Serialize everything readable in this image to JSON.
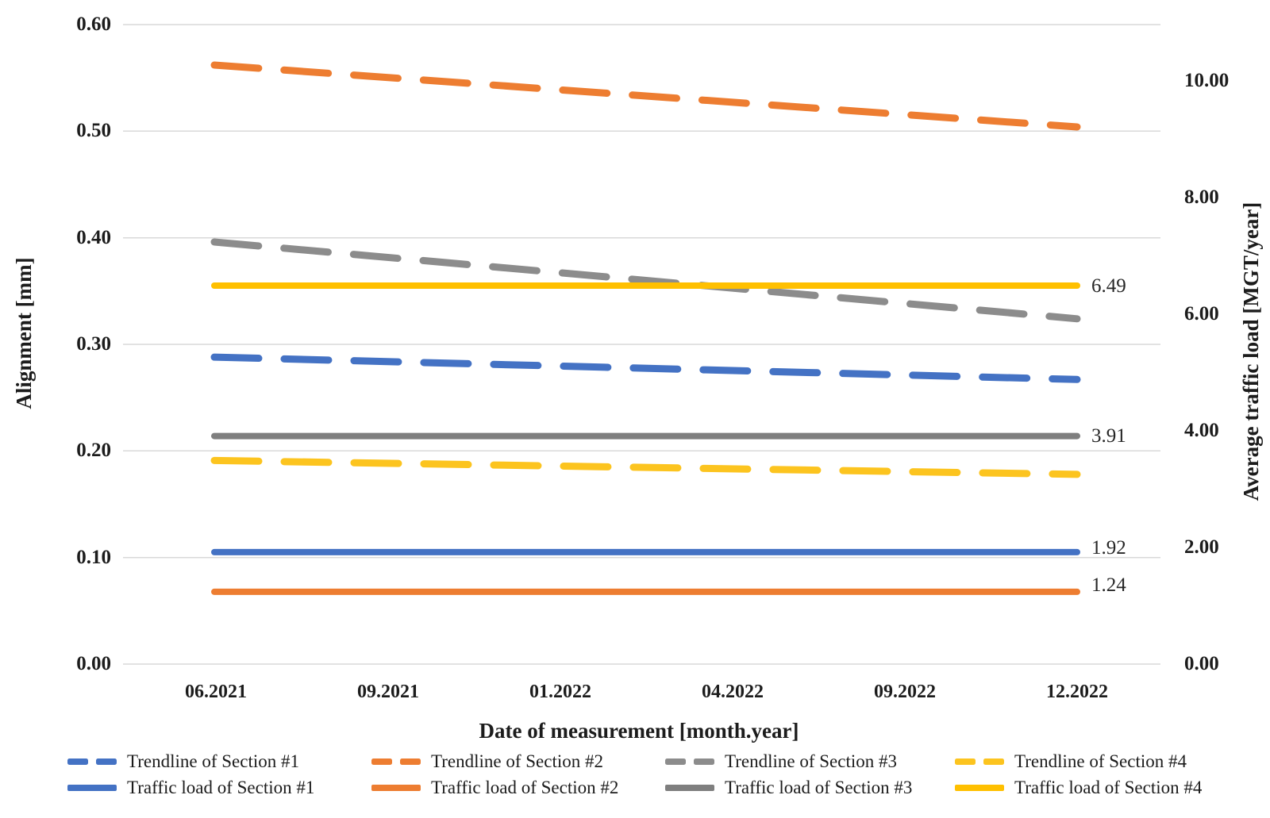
{
  "chart_data": {
    "type": "line",
    "title": "",
    "xlabel": "Date of measurement [month.year]",
    "ylabel_left": "Alignment [mm]",
    "ylabel_right": "Average traffic load [MGT/year]",
    "x_categories": [
      "06.2021",
      "09.2021",
      "01.2022",
      "04.2022",
      "09.2022",
      "12.2022"
    ],
    "grid": true,
    "grid_color": "#D9D9D9",
    "legend_position": "bottom",
    "left_axis": {
      "min": 0.0,
      "max": 0.6,
      "ticks": [
        {
          "label": "0.60",
          "value": 0.6
        },
        {
          "label": "0.50",
          "value": 0.5
        },
        {
          "label": "0.40",
          "value": 0.4
        },
        {
          "label": "0.30",
          "value": 0.3
        },
        {
          "label": "0.20",
          "value": 0.2
        },
        {
          "label": "0.10",
          "value": 0.1
        },
        {
          "label": "0.00",
          "value": 0.0
        }
      ]
    },
    "right_axis": {
      "ticks": [
        {
          "label": "10.00",
          "value": 10.0
        },
        {
          "label": "8.00",
          "value": 8.0
        },
        {
          "label": "6.00",
          "value": 6.0
        },
        {
          "label": "4.00",
          "value": 4.0
        },
        {
          "label": "2.00",
          "value": 2.0
        },
        {
          "label": "0.00",
          "value": 0.0
        }
      ]
    },
    "series": [
      {
        "name": "Trendline of Section #1",
        "style": "dashed",
        "axis": "left",
        "color": "#4472C4",
        "values_at": [
          "06.2021",
          "12.2022"
        ],
        "values": [
          0.288,
          0.267
        ]
      },
      {
        "name": "Trendline of Section #2",
        "style": "dashed",
        "axis": "left",
        "color": "#ED7D31",
        "values_at": [
          "06.2021",
          "12.2022"
        ],
        "values": [
          0.562,
          0.504
        ]
      },
      {
        "name": "Trendline of Section #3",
        "style": "dashed",
        "axis": "left",
        "color": "#8C8C8C",
        "values_at": [
          "06.2021",
          "12.2022"
        ],
        "values": [
          0.396,
          0.324
        ]
      },
      {
        "name": "Trendline of Section #4",
        "style": "dashed",
        "axis": "left",
        "color": "#FCC41F",
        "values_at": [
          "06.2021",
          "12.2022"
        ],
        "values": [
          0.191,
          0.178
        ]
      },
      {
        "name": "Traffic load of Section #1",
        "style": "solid",
        "axis": "right",
        "color": "#4472C4",
        "value": 1.92,
        "data_label": "1.92"
      },
      {
        "name": "Traffic load of Section #2",
        "style": "solid",
        "axis": "right",
        "color": "#ED7D31",
        "value": 1.24,
        "data_label": "1.24"
      },
      {
        "name": "Traffic load of Section #3",
        "style": "solid",
        "axis": "right",
        "color": "#7F7F7F",
        "value": 3.91,
        "data_label": "3.91"
      },
      {
        "name": "Traffic load of Section #4",
        "style": "solid",
        "axis": "right",
        "color": "#FFC000",
        "value": 6.49,
        "data_label": "6.49"
      }
    ]
  }
}
